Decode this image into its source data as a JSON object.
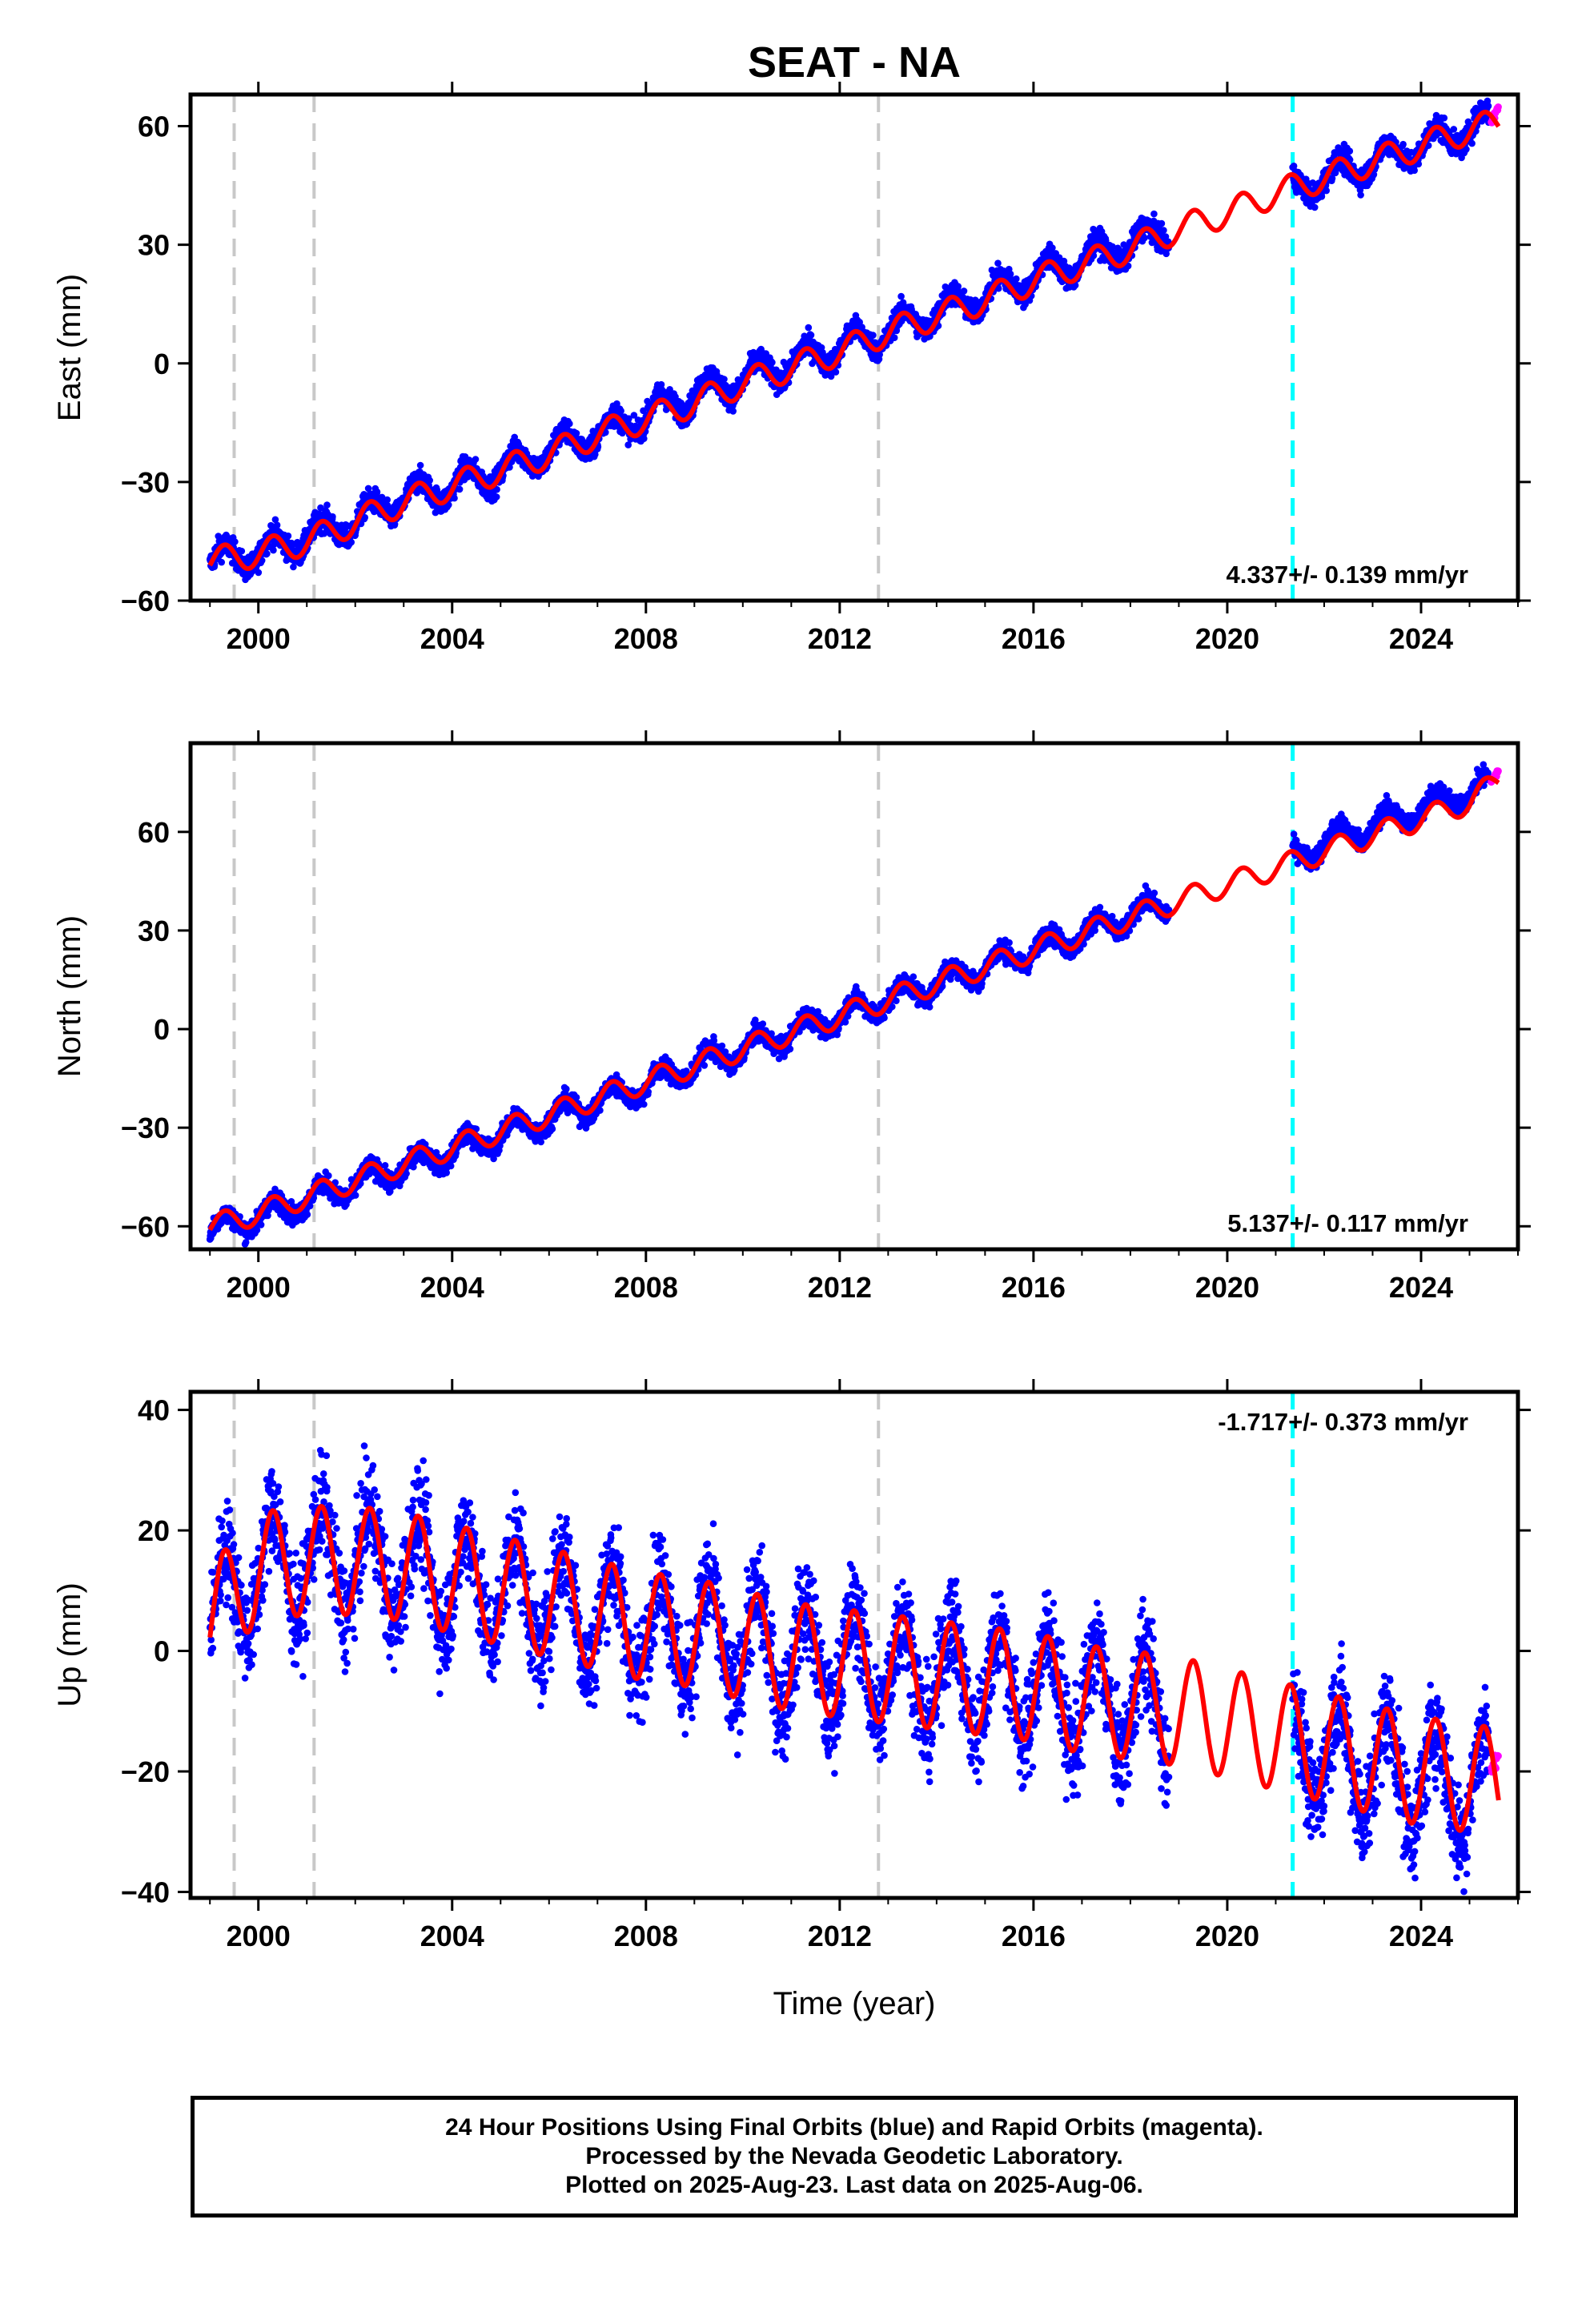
{
  "figure": {
    "title": "SEAT - NA",
    "xlabel": "Time (year)"
  },
  "footer": {
    "lines": [
      "24 Hour Positions Using Final Orbits (blue) and Rapid Orbits (magenta).",
      "Processed by the Nevada Geodetic Laboratory.",
      "Plotted on 2025-Aug-23. Last data on 2025-Aug-06."
    ]
  },
  "colors": {
    "final_orbits": "#0000ff",
    "rapid_orbits": "#ff00ff",
    "model_fit": "#ff0000",
    "equipment_change": "#c8c8c8",
    "earthquake_event": "#00ffff",
    "axes": "#000000"
  },
  "chart_data": [
    {
      "type": "scatter",
      "ylabel": "East (mm)",
      "xlim": [
        1998.6,
        2026.0
      ],
      "ylim": [
        -60,
        68
      ],
      "xticks": [
        2000,
        2004,
        2008,
        2012,
        2016,
        2020,
        2024
      ],
      "yticks": [
        -60,
        -30,
        0,
        30,
        60
      ],
      "velocity_label": "4.337+/- 0.139 mm/yr",
      "velocity_position": "bottom-right",
      "vertical_lines": [
        {
          "x": 1999.5,
          "color": "gray"
        },
        {
          "x": 2001.15,
          "color": "gray"
        },
        {
          "x": 2012.8,
          "color": "gray"
        },
        {
          "x": 2021.35,
          "color": "cyan"
        }
      ],
      "data_gap": [
        2018.8,
        2021.35
      ],
      "series": [
        {
          "name": "Final Orbits",
          "style": "dots",
          "x": [
            1999.0,
            2000.0,
            2001.0,
            2002.0,
            2003.0,
            2004.0,
            2005.0,
            2006.0,
            2007.0,
            2008.0,
            2009.0,
            2010.0,
            2011.0,
            2012.0,
            2013.0,
            2014.0,
            2015.0,
            2016.0,
            2017.0,
            2018.0,
            2018.7,
            2021.4,
            2022.0,
            2023.0,
            2024.0,
            2025.4
          ],
          "y": [
            -50,
            -48,
            -44,
            -40,
            -34,
            -31,
            -27,
            -22,
            -18,
            -13,
            -8,
            -4,
            0,
            4,
            8,
            13,
            17,
            22,
            26,
            30,
            33,
            44,
            47,
            51,
            55,
            61
          ]
        },
        {
          "name": "Rapid Orbits",
          "style": "dots",
          "x": [
            2025.45,
            2025.6
          ],
          "y": [
            61,
            65
          ]
        },
        {
          "name": "Model fit",
          "style": "line",
          "x": [
            1999.0,
            2000.0,
            2001.0,
            2002.0,
            2003.0,
            2004.0,
            2005.0,
            2006.0,
            2007.0,
            2008.0,
            2009.0,
            2010.0,
            2011.0,
            2012.0,
            2013.0,
            2014.0,
            2015.0,
            2016.0,
            2017.0,
            2018.0,
            2019.0,
            2020.0,
            2021.0,
            2022.0,
            2023.0,
            2024.0,
            2025.0,
            2025.6
          ],
          "y": [
            -50,
            -48,
            -45,
            -40,
            -35,
            -31,
            -27,
            -23,
            -18,
            -14,
            -10,
            -5,
            -1,
            3,
            8,
            12,
            16,
            21,
            25,
            29,
            34,
            38,
            43,
            47,
            51,
            55,
            59,
            61
          ]
        }
      ]
    },
    {
      "type": "scatter",
      "ylabel": "North (mm)",
      "xlim": [
        1998.6,
        2026.0
      ],
      "ylim": [
        -67,
        87
      ],
      "xticks": [
        2000,
        2004,
        2008,
        2012,
        2016,
        2020,
        2024
      ],
      "yticks": [
        -60,
        -30,
        0,
        30,
        60
      ],
      "velocity_label": "5.137+/- 0.117 mm/yr",
      "velocity_position": "bottom-right",
      "vertical_lines": [
        {
          "x": 1999.5,
          "color": "gray"
        },
        {
          "x": 2001.15,
          "color": "gray"
        },
        {
          "x": 2012.8,
          "color": "gray"
        },
        {
          "x": 2021.35,
          "color": "cyan"
        }
      ],
      "data_gap": [
        2018.8,
        2021.35
      ],
      "series": [
        {
          "name": "Final Orbits",
          "style": "dots",
          "x": [
            1999.0,
            2000.0,
            2001.0,
            2002.0,
            2003.0,
            2004.0,
            2005.0,
            2006.0,
            2007.0,
            2008.0,
            2009.0,
            2010.0,
            2011.0,
            2012.0,
            2013.0,
            2014.0,
            2015.0,
            2016.0,
            2017.0,
            2018.0,
            2018.7,
            2021.4,
            2022.0,
            2023.0,
            2024.0,
            2025.4
          ],
          "y": [
            -61,
            -57,
            -52,
            -47,
            -42,
            -37,
            -32,
            -27,
            -22,
            -17,
            -11,
            -6,
            -1,
            4,
            9,
            14,
            19,
            24,
            29,
            34,
            38,
            52,
            57,
            62,
            67,
            74
          ]
        },
        {
          "name": "Rapid Orbits",
          "style": "dots",
          "x": [
            2025.45,
            2025.6
          ],
          "y": [
            75,
            79
          ]
        },
        {
          "name": "Model fit",
          "style": "line",
          "x": [
            1999.0,
            2000.0,
            2001.0,
            2002.0,
            2003.0,
            2004.0,
            2005.0,
            2006.0,
            2007.0,
            2008.0,
            2009.0,
            2010.0,
            2011.0,
            2012.0,
            2013.0,
            2014.0,
            2015.0,
            2016.0,
            2017.0,
            2018.0,
            2019.0,
            2020.0,
            2021.0,
            2022.0,
            2023.0,
            2024.0,
            2025.0,
            2025.6
          ],
          "y": [
            -60,
            -56,
            -51,
            -46,
            -41,
            -36,
            -31,
            -26,
            -21,
            -16,
            -11,
            -6,
            -1,
            4,
            9,
            14,
            19,
            24,
            29,
            34,
            39,
            44,
            49,
            54,
            59,
            64,
            69,
            76
          ]
        }
      ]
    },
    {
      "type": "scatter",
      "ylabel": "Up (mm)",
      "xlim": [
        1998.6,
        2026.0
      ],
      "ylim": [
        -41,
        43
      ],
      "xticks": [
        2000,
        2004,
        2008,
        2012,
        2016,
        2020,
        2024
      ],
      "yticks": [
        -40,
        -20,
        0,
        20,
        40
      ],
      "velocity_label": "-1.717+/- 0.373 mm/yr",
      "velocity_position": "top-right",
      "vertical_lines": [
        {
          "x": 1999.5,
          "color": "gray"
        },
        {
          "x": 2001.15,
          "color": "gray"
        },
        {
          "x": 2012.8,
          "color": "gray"
        },
        {
          "x": 2021.35,
          "color": "cyan"
        }
      ],
      "data_gap": [
        2018.8,
        2021.35
      ],
      "series": [
        {
          "name": "Final Orbits",
          "style": "dots",
          "x": [
            1999.0,
            2000.0,
            2001.0,
            2002.0,
            2003.0,
            2004.0,
            2005.0,
            2006.0,
            2007.0,
            2008.0,
            2009.0,
            2010.0,
            2011.0,
            2012.0,
            2013.0,
            2014.0,
            2015.0,
            2016.0,
            2017.0,
            2018.0,
            2018.7,
            2021.4,
            2022.0,
            2023.0,
            2024.0,
            2025.4
          ],
          "y": [
            5,
            14,
            15,
            15,
            14,
            12,
            10,
            8,
            6,
            4,
            3,
            1,
            -1,
            -2,
            -3,
            -4,
            -5,
            -6,
            -8,
            -9,
            -10,
            -15,
            -17,
            -19,
            -21,
            -23
          ]
        },
        {
          "name": "Rapid Orbits",
          "style": "dots",
          "x": [
            2025.45,
            2025.6
          ],
          "y": [
            -20,
            -17
          ]
        },
        {
          "name": "Model fit",
          "style": "line",
          "annual_amplitude_mm": 9,
          "x": [
            1999.0,
            2000.0,
            2001.0,
            2002.0,
            2003.0,
            2004.0,
            2005.0,
            2006.0,
            2007.0,
            2008.0,
            2009.0,
            2010.0,
            2011.0,
            2012.0,
            2013.0,
            2014.0,
            2015.0,
            2016.0,
            2017.0,
            2018.0,
            2019.0,
            2020.0,
            2021.0,
            2022.0,
            2023.0,
            2024.0,
            2025.0,
            2025.6
          ],
          "y": [
            5,
            14,
            15,
            15,
            14,
            12,
            10,
            8,
            6,
            4,
            3,
            1,
            -1,
            -2,
            -3,
            -4,
            -5,
            -6,
            -8,
            -9,
            -10,
            -12,
            -14,
            -16,
            -18,
            -20,
            -21,
            -22
          ]
        }
      ]
    }
  ]
}
